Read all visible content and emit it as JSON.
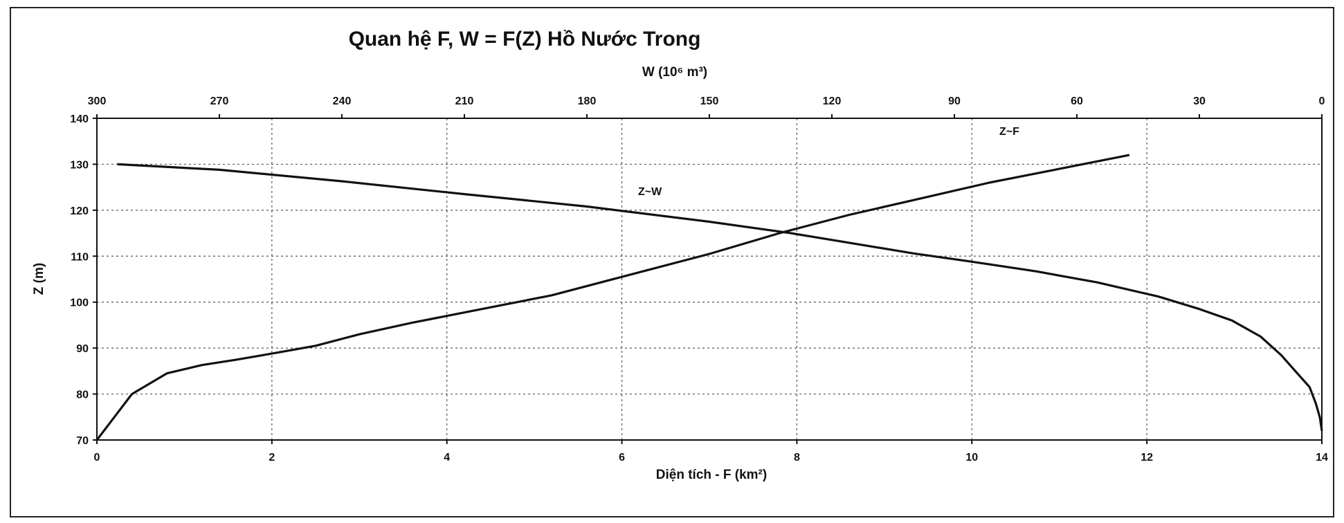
{
  "chart_data": {
    "type": "line",
    "title": "Quan hệ F, W = F(Z) Hồ Nước Trong",
    "xlabel": "Diện tích - F (km²)",
    "x2label": "W (10⁶ m³)",
    "ylabel": "Z (m)",
    "xlim": [
      0,
      14
    ],
    "x2lim": [
      300,
      0
    ],
    "ylim": [
      70,
      140
    ],
    "x_ticks": [
      "0",
      "2",
      "4",
      "6",
      "8",
      "10",
      "12",
      "14"
    ],
    "x2_ticks": [
      "300",
      "270",
      "240",
      "210",
      "180",
      "150",
      "120",
      "90",
      "60",
      "30",
      "0"
    ],
    "y_ticks": [
      "70",
      "80",
      "90",
      "100",
      "110",
      "120",
      "130",
      "140"
    ],
    "grid": true,
    "series": [
      {
        "name": "Z~F",
        "axis": "F (bottom)",
        "x": [
          0,
          0.2,
          0.4,
          0.8,
          1.2,
          1.6,
          2.0,
          2.5,
          3.0,
          3.6,
          4.4,
          5.2,
          6.0,
          7.0,
          7.8,
          8.6,
          9.4,
          10.2,
          11.0,
          11.8
        ],
        "y": [
          70,
          75,
          80,
          84.5,
          86.3,
          87.5,
          88.8,
          90.5,
          93,
          95.5,
          98.5,
          101.5,
          105.5,
          110.5,
          115,
          119,
          122.5,
          126,
          129,
          132
        ]
      },
      {
        "name": "Z~W",
        "axis": "W (top)",
        "x": [
          295,
          270,
          240,
          210,
          180,
          150,
          130,
          115,
          100,
          85,
          70,
          55,
          40,
          30,
          22,
          15,
          10,
          6,
          3,
          1.5,
          0.5,
          0
        ],
        "y": [
          130,
          128.8,
          126.3,
          123.5,
          120.8,
          117.5,
          115,
          112.8,
          110.6,
          108.7,
          106.7,
          104.3,
          101.2,
          98.5,
          96,
          92.5,
          88.5,
          84.5,
          81.5,
          78,
          75,
          72
        ]
      }
    ],
    "annotations": [
      "Z~F",
      "Z~W"
    ]
  }
}
